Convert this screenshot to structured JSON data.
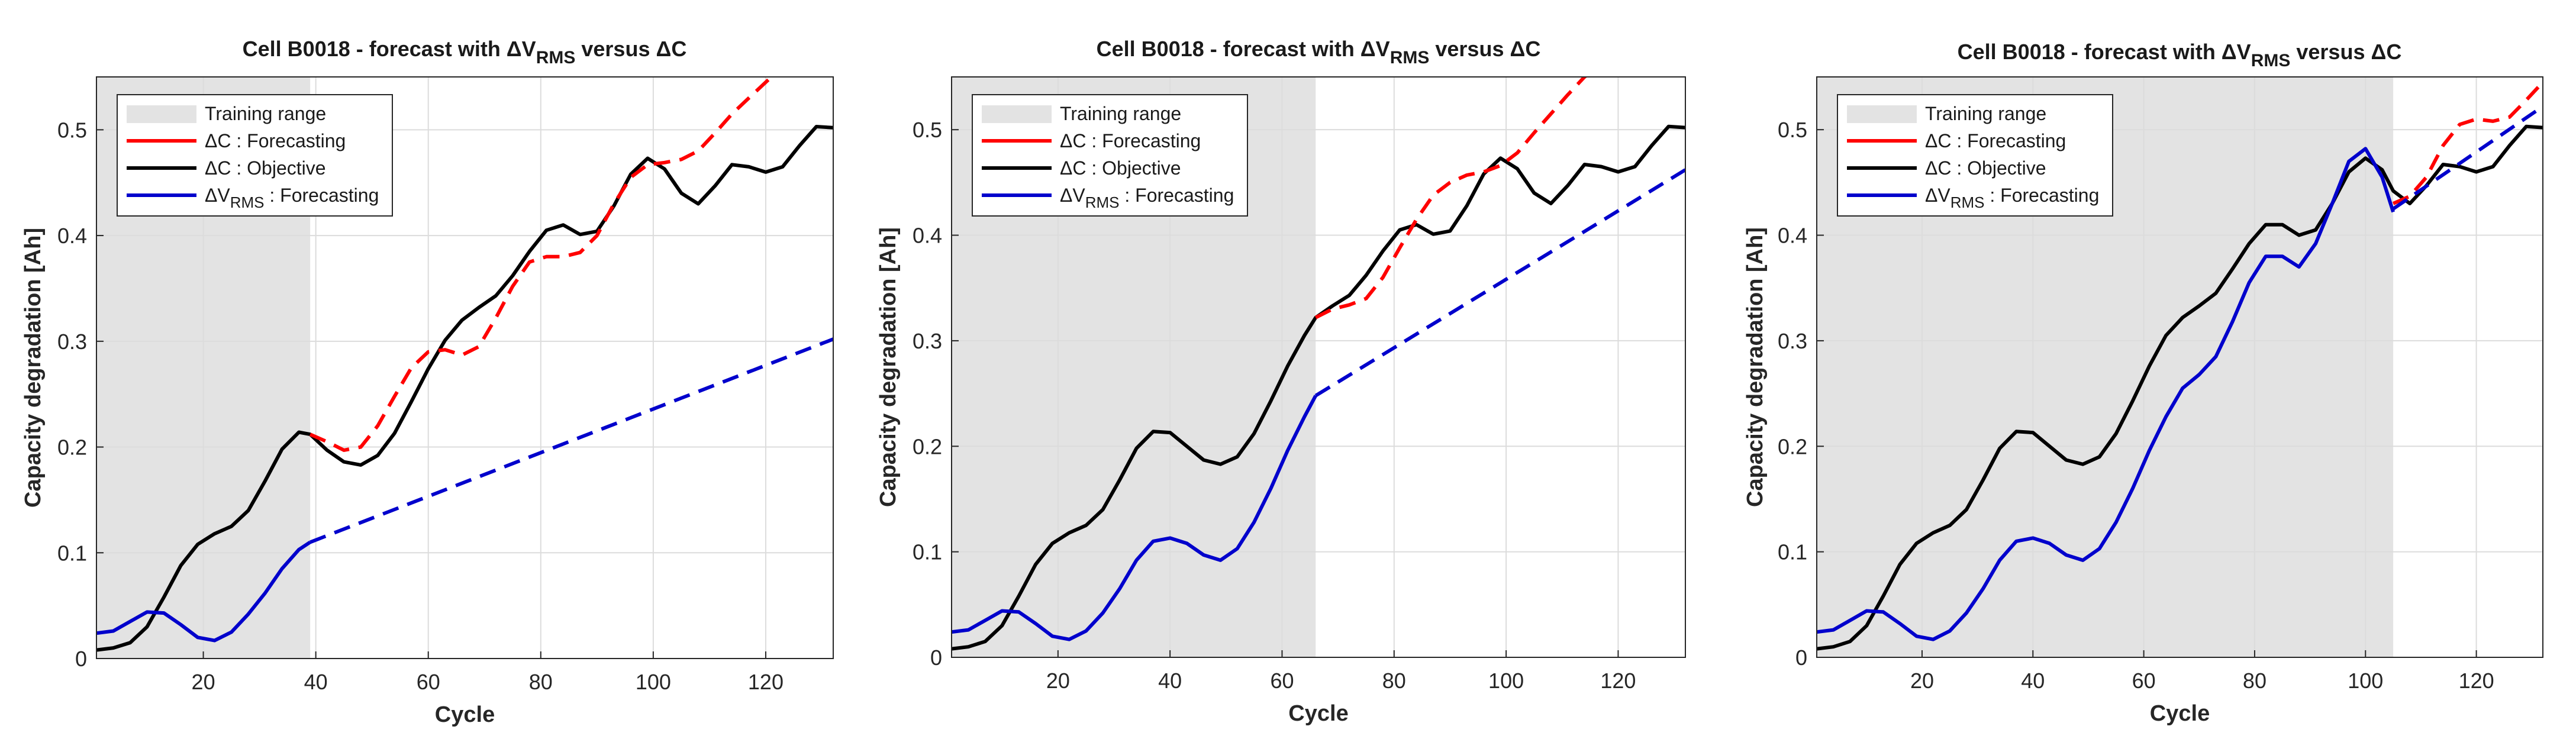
{
  "chart_data": [
    {
      "type": "line",
      "title": "Cell B0018 - forecast with ΔV",
      "title_sub": "RMS",
      "title_tail": " versus ΔC",
      "xlabel": "Cycle",
      "ylabel": "Capacity degradation [Ah]",
      "xlim": [
        1,
        132
      ],
      "ylim": [
        0,
        0.55
      ],
      "xticks": [
        20,
        40,
        60,
        80,
        100,
        120
      ],
      "yticks": [
        0,
        0.1,
        0.2,
        0.3,
        0.4,
        0.5
      ],
      "training_range": [
        1,
        39
      ],
      "legend": {
        "position": "top-left",
        "entries": [
          {
            "key": "training",
            "label": "Training range"
          },
          {
            "key": "dc_forecast",
            "label": "ΔC : Forecasting",
            "color": "#ff0000",
            "dashed": false
          },
          {
            "key": "dc_objective",
            "label": "ΔC : Objective",
            "color": "#000000",
            "dashed": false
          },
          {
            "key": "dv_forecast",
            "label": "ΔV",
            "label_sub": "RMS",
            "label_tail": " : Forecasting",
            "color": "#0000cc",
            "dashed": false
          }
        ]
      },
      "series": [
        {
          "name": "ΔC : Objective",
          "color": "#000000",
          "dashed": false,
          "x": [
            1,
            4,
            7,
            10,
            13,
            16,
            19,
            22,
            25,
            28,
            31,
            34,
            37,
            39,
            42,
            45,
            48,
            51,
            54,
            57,
            60,
            63,
            66,
            69,
            72,
            75,
            78,
            81,
            84,
            87,
            90,
            93,
            96,
            99,
            102,
            105,
            108,
            111,
            114,
            117,
            120,
            123,
            126,
            129,
            132
          ],
          "y": [
            0.008,
            0.01,
            0.015,
            0.03,
            0.058,
            0.088,
            0.108,
            0.118,
            0.125,
            0.14,
            0.168,
            0.198,
            0.214,
            0.212,
            0.197,
            0.186,
            0.183,
            0.192,
            0.213,
            0.243,
            0.274,
            0.301,
            0.32,
            0.332,
            0.343,
            0.362,
            0.385,
            0.405,
            0.41,
            0.401,
            0.404,
            0.428,
            0.458,
            0.473,
            0.463,
            0.44,
            0.43,
            0.447,
            0.467,
            0.465,
            0.46,
            0.465,
            0.485,
            0.503,
            0.502
          ]
        },
        {
          "name": "ΔC : Forecasting",
          "color": "#ff0000",
          "dashed": true,
          "x": [
            39,
            42,
            45,
            48,
            51,
            54,
            57,
            60,
            63,
            66,
            69,
            72,
            75,
            78,
            81,
            84,
            87,
            90,
            93,
            96,
            99,
            102,
            105,
            108,
            111,
            114,
            117,
            120,
            122
          ],
          "y": [
            0.212,
            0.205,
            0.197,
            0.2,
            0.22,
            0.248,
            0.275,
            0.29,
            0.292,
            0.287,
            0.295,
            0.322,
            0.352,
            0.375,
            0.38,
            0.38,
            0.384,
            0.4,
            0.43,
            0.455,
            0.467,
            0.469,
            0.472,
            0.48,
            0.497,
            0.515,
            0.53,
            0.545,
            0.555
          ]
        },
        {
          "name": "ΔV RMS : Forecasting (training fit)",
          "color": "#0000cc",
          "dashed": false,
          "x": [
            1,
            4,
            7,
            10,
            13,
            16,
            19,
            22,
            25,
            28,
            31,
            34,
            37,
            39
          ],
          "y": [
            0.024,
            0.026,
            0.035,
            0.044,
            0.043,
            0.032,
            0.02,
            0.017,
            0.025,
            0.042,
            0.062,
            0.085,
            0.103,
            0.11
          ]
        },
        {
          "name": "ΔV RMS : Forecasting",
          "color": "#0000cc",
          "dashed": true,
          "x": [
            39,
            132
          ],
          "y": [
            0.11,
            0.302
          ]
        }
      ]
    },
    {
      "type": "line",
      "title": "Cell B0018 - forecast with ΔV",
      "title_sub": "RMS",
      "title_tail": " versus ΔC",
      "xlabel": "Cycle",
      "ylabel": "Capacity degradation [Ah]",
      "xlim": [
        1,
        132
      ],
      "ylim": [
        0,
        0.55
      ],
      "xticks": [
        20,
        40,
        60,
        80,
        100,
        120
      ],
      "yticks": [
        0,
        0.1,
        0.2,
        0.3,
        0.4,
        0.5
      ],
      "training_range": [
        1,
        66
      ],
      "legend": {
        "position": "top-left",
        "entries": [
          {
            "key": "training",
            "label": "Training range"
          },
          {
            "key": "dc_forecast",
            "label": "ΔC : Forecasting",
            "color": "#ff0000",
            "dashed": false
          },
          {
            "key": "dc_objective",
            "label": "ΔC : Objective",
            "color": "#000000",
            "dashed": false
          },
          {
            "key": "dv_forecast",
            "label": "ΔV",
            "label_sub": "RMS",
            "label_tail": " : Forecasting",
            "color": "#0000cc",
            "dashed": false
          }
        ]
      },
      "series": [
        {
          "name": "ΔC : Objective",
          "color": "#000000",
          "dashed": false,
          "x": [
            1,
            4,
            7,
            10,
            13,
            16,
            19,
            22,
            25,
            28,
            31,
            34,
            37,
            40,
            43,
            46,
            49,
            52,
            55,
            58,
            61,
            64,
            66,
            69,
            72,
            75,
            78,
            81,
            84,
            87,
            90,
            93,
            96,
            99,
            102,
            105,
            108,
            111,
            114,
            117,
            120,
            123,
            126,
            129,
            132
          ],
          "y": [
            0.008,
            0.01,
            0.015,
            0.03,
            0.058,
            0.088,
            0.108,
            0.118,
            0.125,
            0.14,
            0.168,
            0.198,
            0.214,
            0.213,
            0.2,
            0.187,
            0.183,
            0.19,
            0.212,
            0.243,
            0.276,
            0.305,
            0.322,
            0.333,
            0.343,
            0.362,
            0.385,
            0.405,
            0.41,
            0.401,
            0.404,
            0.428,
            0.458,
            0.473,
            0.463,
            0.44,
            0.43,
            0.447,
            0.467,
            0.465,
            0.46,
            0.465,
            0.485,
            0.503,
            0.502
          ]
        },
        {
          "name": "ΔC : Forecasting",
          "color": "#ff0000",
          "dashed": true,
          "x": [
            66,
            69,
            72,
            75,
            78,
            81,
            84,
            87,
            90,
            93,
            96,
            99,
            102,
            105,
            108,
            111,
            114,
            116
          ],
          "y": [
            0.322,
            0.33,
            0.334,
            0.34,
            0.36,
            0.388,
            0.415,
            0.438,
            0.45,
            0.457,
            0.46,
            0.466,
            0.478,
            0.497,
            0.515,
            0.533,
            0.55,
            0.557
          ]
        },
        {
          "name": "ΔV RMS : Forecasting (training fit)",
          "color": "#0000cc",
          "dashed": false,
          "x": [
            1,
            4,
            7,
            10,
            13,
            16,
            19,
            22,
            25,
            28,
            31,
            34,
            37,
            40,
            43,
            46,
            49,
            52,
            55,
            58,
            61,
            64,
            66
          ],
          "y": [
            0.024,
            0.026,
            0.035,
            0.044,
            0.043,
            0.032,
            0.02,
            0.017,
            0.025,
            0.042,
            0.065,
            0.092,
            0.11,
            0.113,
            0.108,
            0.097,
            0.092,
            0.103,
            0.128,
            0.16,
            0.196,
            0.228,
            0.248
          ]
        },
        {
          "name": "ΔV RMS : Forecasting",
          "color": "#0000cc",
          "dashed": true,
          "x": [
            66,
            132
          ],
          "y": [
            0.248,
            0.462
          ]
        }
      ]
    },
    {
      "type": "line",
      "title": "Cell B0018 - forecast with ΔV",
      "title_sub": "RMS",
      "title_tail": " versus ΔC",
      "xlabel": "Cycle",
      "ylabel": "Capacity degradation [Ah]",
      "xlim": [
        1,
        132
      ],
      "ylim": [
        0,
        0.55
      ],
      "xticks": [
        20,
        40,
        60,
        80,
        100,
        120
      ],
      "yticks": [
        0,
        0.1,
        0.2,
        0.3,
        0.4,
        0.5
      ],
      "training_range": [
        1,
        105
      ],
      "legend": {
        "position": "top-left",
        "entries": [
          {
            "key": "training",
            "label": "Training range"
          },
          {
            "key": "dc_forecast",
            "label": "ΔC : Forecasting",
            "color": "#ff0000",
            "dashed": false
          },
          {
            "key": "dc_objective",
            "label": "ΔC : Objective",
            "color": "#000000",
            "dashed": false
          },
          {
            "key": "dv_forecast",
            "label": "ΔV",
            "label_sub": "RMS",
            "label_tail": " : Forecasting",
            "color": "#0000cc",
            "dashed": false
          }
        ]
      },
      "series": [
        {
          "name": "ΔC : Objective",
          "color": "#000000",
          "dashed": false,
          "x": [
            1,
            4,
            7,
            10,
            13,
            16,
            19,
            22,
            25,
            28,
            31,
            34,
            37,
            40,
            43,
            46,
            49,
            52,
            55,
            58,
            61,
            64,
            67,
            70,
            73,
            76,
            79,
            82,
            85,
            88,
            91,
            94,
            97,
            100,
            103,
            105,
            108,
            111,
            114,
            117,
            120,
            123,
            126,
            129,
            132
          ],
          "y": [
            0.008,
            0.01,
            0.015,
            0.03,
            0.058,
            0.088,
            0.108,
            0.118,
            0.125,
            0.14,
            0.168,
            0.198,
            0.214,
            0.213,
            0.2,
            0.187,
            0.183,
            0.19,
            0.212,
            0.243,
            0.276,
            0.305,
            0.322,
            0.333,
            0.345,
            0.368,
            0.392,
            0.41,
            0.41,
            0.4,
            0.405,
            0.43,
            0.46,
            0.473,
            0.462,
            0.442,
            0.43,
            0.447,
            0.467,
            0.465,
            0.46,
            0.465,
            0.485,
            0.503,
            0.502
          ]
        },
        {
          "name": "ΔC : Forecasting",
          "color": "#ff0000",
          "dashed": true,
          "x": [
            105,
            108,
            111,
            114,
            117,
            120,
            123,
            126,
            129,
            132
          ],
          "y": [
            0.43,
            0.437,
            0.455,
            0.485,
            0.505,
            0.51,
            0.508,
            0.512,
            0.528,
            0.545
          ]
        },
        {
          "name": "ΔV RMS : Forecasting (training fit)",
          "color": "#0000cc",
          "dashed": false,
          "x": [
            1,
            4,
            7,
            10,
            13,
            16,
            19,
            22,
            25,
            28,
            31,
            34,
            37,
            40,
            43,
            46,
            49,
            52,
            55,
            58,
            61,
            64,
            67,
            70,
            73,
            76,
            79,
            82,
            85,
            88,
            91,
            94,
            97,
            100,
            103,
            105
          ],
          "y": [
            0.024,
            0.026,
            0.035,
            0.044,
            0.043,
            0.032,
            0.02,
            0.017,
            0.025,
            0.042,
            0.065,
            0.092,
            0.11,
            0.113,
            0.108,
            0.097,
            0.092,
            0.103,
            0.128,
            0.16,
            0.196,
            0.228,
            0.255,
            0.268,
            0.285,
            0.318,
            0.355,
            0.38,
            0.38,
            0.37,
            0.392,
            0.43,
            0.47,
            0.482,
            0.455,
            0.422
          ]
        },
        {
          "name": "ΔV RMS : Forecasting",
          "color": "#0000cc",
          "dashed": true,
          "x": [
            105,
            132
          ],
          "y": [
            0.425,
            0.522
          ]
        }
      ]
    }
  ]
}
